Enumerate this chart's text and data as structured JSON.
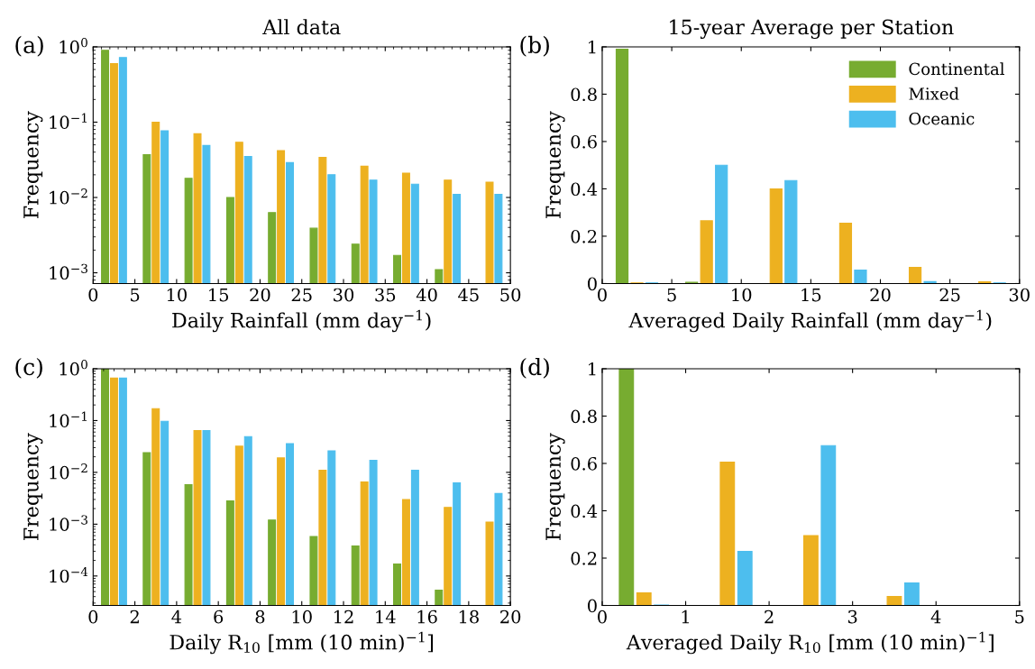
{
  "chart_data": [
    {
      "type": "bar",
      "title": "All data",
      "xlabel": "Daily Rainfall (mm day$^{−1}$)",
      "ylabel": "Frequency",
      "annotations": [
        "(a)"
      ],
      "log": "y",
      "xlim": [
        0,
        50
      ],
      "xticks": [
        0,
        5,
        10,
        15,
        20,
        25,
        30,
        35,
        40,
        45,
        50
      ],
      "ylim": [
        0.00072,
        1
      ],
      "yticks": [
        {
          "value": 0.001,
          "label": "10$^{−3}$"
        },
        {
          "value": 0.01,
          "label": "10$^{−2}$"
        },
        {
          "value": 0.1,
          "label": "10$^{−1}$"
        },
        {
          "value": 1,
          "label": "10$^{0}$"
        }
      ],
      "series": [
        {
          "color": "#77ac30",
          "x": [
            1.43,
            6.43,
            11.43,
            16.43,
            21.43,
            26.43,
            31.43,
            36.43,
            41.43
          ],
          "values": [
            0.9,
            0.037,
            0.018,
            0.01,
            0.0063,
            0.0039,
            0.0024,
            0.0017,
            0.0011
          ]
        },
        {
          "color": "#edb120",
          "x": [
            2.5,
            7.5,
            12.5,
            17.5,
            22.5,
            27.5,
            32.5,
            37.5,
            42.5,
            47.5
          ],
          "values": [
            0.6,
            0.1,
            0.07,
            0.054,
            0.042,
            0.034,
            0.026,
            0.021,
            0.017,
            0.016
          ]
        },
        {
          "color": "#4dbeee",
          "x": [
            3.57,
            8.57,
            13.57,
            18.57,
            23.57,
            28.57,
            33.57,
            38.57,
            43.57,
            48.57
          ],
          "values": [
            0.72,
            0.077,
            0.049,
            0.035,
            0.029,
            0.02,
            0.017,
            0.015,
            0.011,
            0.011
          ]
        }
      ]
    },
    {
      "type": "bar",
      "title": "15-year Average per Station",
      "xlabel": "Averaged Daily Rainfall (mm day$^{−1}$)",
      "ylabel": "Frequency",
      "annotations": [
        "(b)"
      ],
      "legend": "top right",
      "xlim": [
        0,
        30
      ],
      "xticks": [
        0,
        5,
        10,
        15,
        20,
        25,
        30
      ],
      "ylim": [
        0,
        1
      ],
      "yticks": [
        0,
        0.2,
        0.4,
        0.6,
        0.8,
        1
      ],
      "series": [
        {
          "name": "Continental",
          "color": "#77ac30",
          "x": [
            1.43,
            6.43,
            11.43,
            16.43,
            21.43,
            26.43
          ],
          "values": [
            0.99,
            0.005,
            0,
            0,
            0,
            0
          ]
        },
        {
          "name": "Mixed",
          "color": "#edb120",
          "x": [
            2.5,
            7.5,
            12.5,
            17.5,
            22.5,
            27.5
          ],
          "values": [
            0.003,
            0.265,
            0.4,
            0.255,
            0.068,
            0.007
          ]
        },
        {
          "name": "Oceanic",
          "color": "#4dbeee",
          "x": [
            3.57,
            8.57,
            13.57,
            18.57,
            23.57,
            28.57
          ],
          "values": [
            0.003,
            0.5,
            0.435,
            0.057,
            0.008,
            0.003
          ]
        }
      ]
    },
    {
      "type": "bar",
      "xlabel": "Daily R$_{10}$ [mm (10 min)$^{−1}$]",
      "ylabel": "Frequency",
      "annotations": [
        "(c)"
      ],
      "log": "y",
      "xlim": [
        0,
        20
      ],
      "xticks": [
        0,
        2,
        4,
        6,
        8,
        10,
        12,
        14,
        16,
        18,
        20
      ],
      "ylim": [
        2.7e-05,
        1
      ],
      "yticks": [
        {
          "value": 0.0001,
          "label": "10$^{−4}$"
        },
        {
          "value": 0.001,
          "label": "10$^{−3}$"
        },
        {
          "value": 0.01,
          "label": "10$^{−2}$"
        },
        {
          "value": 0.1,
          "label": "10$^{−1}$"
        },
        {
          "value": 1,
          "label": "10$^{0}$"
        }
      ],
      "series": [
        {
          "color": "#77ac30",
          "x": [
            0.57,
            2.57,
            4.57,
            6.57,
            8.57,
            10.57,
            12.57,
            14.57,
            16.57
          ],
          "values": [
            1.0,
            0.024,
            0.0058,
            0.0028,
            0.0012,
            0.00058,
            0.00038,
            0.00017,
            5.3e-05
          ]
        },
        {
          "color": "#edb120",
          "x": [
            1.0,
            3.0,
            5.0,
            7.0,
            9.0,
            11.0,
            13.0,
            15.0,
            17.0,
            19.0
          ],
          "values": [
            0.66,
            0.17,
            0.064,
            0.032,
            0.019,
            0.011,
            0.0065,
            0.003,
            0.0021,
            0.0011
          ]
        },
        {
          "color": "#4dbeee",
          "x": [
            1.43,
            3.43,
            5.43,
            7.43,
            9.43,
            11.43,
            13.43,
            15.43,
            17.43,
            19.43
          ],
          "values": [
            0.66,
            0.097,
            0.064,
            0.049,
            0.036,
            0.026,
            0.017,
            0.011,
            0.0063,
            0.0039
          ]
        }
      ]
    },
    {
      "type": "bar",
      "xlabel": "Averaged Daily R$_{10}$ [mm (10 min)$^{−1}$]",
      "ylabel": "Frequency",
      "annotations": [
        "(d)"
      ],
      "xlim": [
        0,
        5
      ],
      "xticks": [
        0,
        1,
        2,
        3,
        4,
        5
      ],
      "ylim": [
        0,
        1
      ],
      "yticks": [
        0,
        0.2,
        0.4,
        0.6,
        0.8,
        1
      ],
      "series": [
        {
          "color": "#77ac30",
          "x": [
            0.29,
            1.29,
            2.29,
            3.29,
            4.29
          ],
          "values": [
            1.0,
            0,
            0,
            0,
            0
          ]
        },
        {
          "color": "#edb120",
          "x": [
            0.5,
            1.5,
            2.5,
            3.5,
            4.5
          ],
          "values": [
            0.053,
            0.605,
            0.295,
            0.038,
            0
          ]
        },
        {
          "color": "#4dbeee",
          "x": [
            0.71,
            1.71,
            2.71,
            3.71,
            4.71
          ],
          "values": [
            0.002,
            0.228,
            0.675,
            0.095,
            0
          ]
        }
      ]
    }
  ]
}
